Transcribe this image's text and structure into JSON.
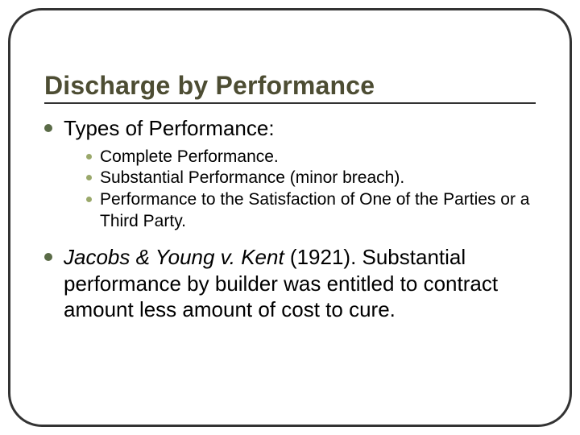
{
  "slide": {
    "title": "Discharge by Performance",
    "title_color": "#4d4d33",
    "title_fontsize": 32,
    "frame": {
      "border_color": "#333333",
      "border_width": 3,
      "corner_radius": 42
    },
    "bullets": [
      {
        "html": "Types of Performance:",
        "disc_color": "#5a6b47",
        "fontsize": 26,
        "sub": [
          {
            "text": "Complete Performance.",
            "dot_color": "#9aa86b",
            "fontsize": 21
          },
          {
            "text": "Substantial Performance (minor breach).",
            "dot_color": "#9aa86b",
            "fontsize": 21
          },
          {
            "text": "Performance to the Satisfaction of One of the Parties or a Third Party.",
            "dot_color": "#9aa86b",
            "fontsize": 21
          }
        ]
      },
      {
        "html": "<span class=\"italic\">Jacobs & Young v. Kent </span>(1921). Substantial performance by builder was entitled to contract amount less amount of cost to cure.",
        "disc_color": "#5a6b47",
        "fontsize": 26,
        "sub": []
      }
    ],
    "background_color": "#ffffff"
  }
}
